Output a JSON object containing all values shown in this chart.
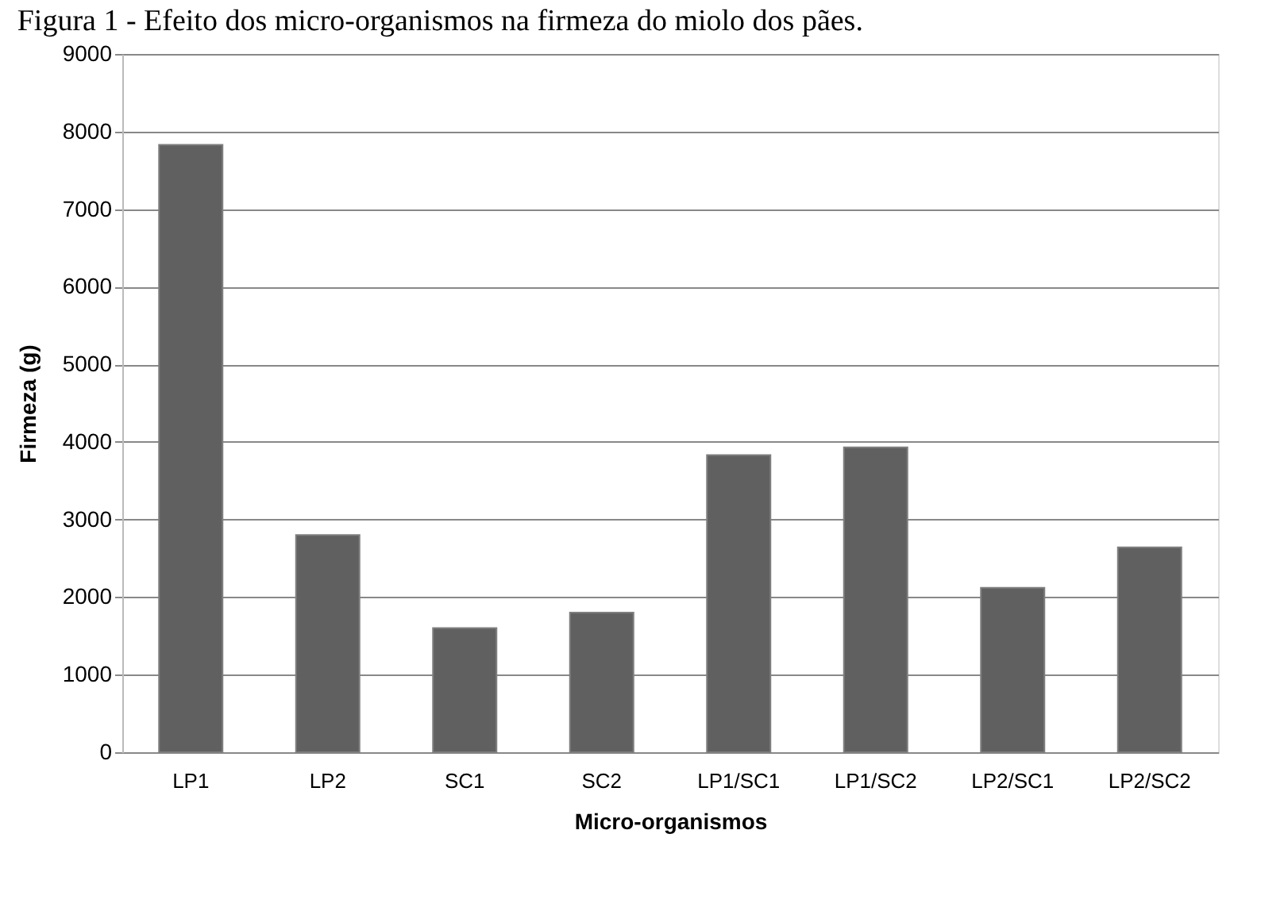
{
  "chart_data": {
    "type": "bar",
    "title": "Figura 1 - Efeito dos micro-organismos na firmeza do miolo dos pães.",
    "xlabel": "Micro-organismos",
    "ylabel": "Firmeza (g)",
    "categories": [
      "LP1",
      "LP2",
      "SC1",
      "SC2",
      "LP1/SC1",
      "LP1/SC2",
      "LP2/SC1",
      "LP2/SC2"
    ],
    "values": [
      7830,
      2800,
      1600,
      1800,
      3830,
      3930,
      2120,
      2640
    ],
    "color": "#606060",
    "ylim": [
      0,
      9000
    ],
    "yticks": [
      0,
      1000,
      2000,
      3000,
      4000,
      5000,
      6000,
      7000,
      8000,
      9000
    ],
    "grid": "y"
  }
}
